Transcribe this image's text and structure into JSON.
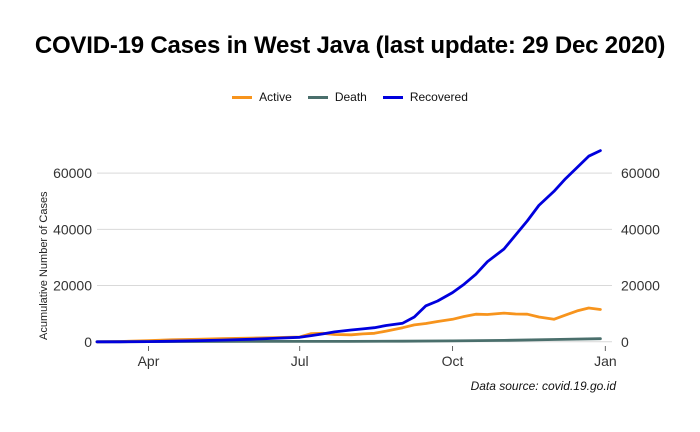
{
  "chart_data": {
    "type": "line",
    "title": "COVID-19 Cases in West Java (last update: 29 Dec 2020)",
    "ylabel": "Acumulative Number of Cases",
    "xlabel": "",
    "source_note": "Data source: covid.19.go.id",
    "x_ticks": [
      "Apr",
      "Jul",
      "Oct",
      "Jan"
    ],
    "x_tick_dates": [
      "2020-04-01",
      "2020-07-01",
      "2020-10-01",
      "2021-01-01"
    ],
    "xlim": [
      "2020-03-01",
      "2021-01-05"
    ],
    "y_ticks": [
      "0",
      "20000",
      "40000",
      "60000"
    ],
    "y_tick_values": [
      0,
      20000,
      40000,
      60000
    ],
    "ylim": [
      -1500,
      70000
    ],
    "grid": true,
    "secondary_y_axis": true,
    "legend": "top-center",
    "series": [
      {
        "name": "Active",
        "color": "#f7941d",
        "x": [
          "2020-03-01",
          "2020-03-15",
          "2020-04-01",
          "2020-04-15",
          "2020-05-01",
          "2020-05-15",
          "2020-06-01",
          "2020-06-15",
          "2020-07-01",
          "2020-07-08",
          "2020-07-15",
          "2020-07-22",
          "2020-08-01",
          "2020-08-08",
          "2020-08-15",
          "2020-08-22",
          "2020-09-01",
          "2020-09-08",
          "2020-09-15",
          "2020-09-22",
          "2020-10-01",
          "2020-10-08",
          "2020-10-15",
          "2020-10-22",
          "2020-11-01",
          "2020-11-08",
          "2020-11-15",
          "2020-11-22",
          "2020-12-01",
          "2020-12-08",
          "2020-12-15",
          "2020-12-22",
          "2020-12-29"
        ],
        "values": [
          0,
          100,
          400,
          700,
          900,
          1100,
          1300,
          1500,
          1700,
          2900,
          3000,
          2600,
          2500,
          2800,
          3000,
          3800,
          5000,
          6000,
          6500,
          7200,
          8000,
          9000,
          9800,
          9700,
          10200,
          9900,
          9800,
          8800,
          8000,
          9500,
          11000,
          12000,
          11500
        ]
      },
      {
        "name": "Death",
        "color": "#4a6f6c",
        "x": [
          "2020-03-01",
          "2020-04-01",
          "2020-05-01",
          "2020-06-01",
          "2020-07-01",
          "2020-08-01",
          "2020-09-01",
          "2020-10-01",
          "2020-11-01",
          "2020-12-01",
          "2020-12-29"
        ],
        "values": [
          0,
          50,
          90,
          120,
          130,
          150,
          190,
          330,
          500,
          800,
          1100
        ]
      },
      {
        "name": "Recovered",
        "color": "#0000dd",
        "x": [
          "2020-03-01",
          "2020-03-15",
          "2020-04-01",
          "2020-04-15",
          "2020-05-01",
          "2020-05-15",
          "2020-06-01",
          "2020-06-15",
          "2020-07-01",
          "2020-07-08",
          "2020-07-15",
          "2020-07-22",
          "2020-08-01",
          "2020-08-08",
          "2020-08-15",
          "2020-08-22",
          "2020-09-01",
          "2020-09-08",
          "2020-09-15",
          "2020-09-22",
          "2020-10-01",
          "2020-10-08",
          "2020-10-15",
          "2020-10-22",
          "2020-11-01",
          "2020-11-08",
          "2020-11-15",
          "2020-11-22",
          "2020-12-01",
          "2020-12-08",
          "2020-12-15",
          "2020-12-22",
          "2020-12-29"
        ],
        "values": [
          0,
          0,
          50,
          200,
          400,
          600,
          900,
          1200,
          1600,
          2200,
          2800,
          3500,
          4200,
          4600,
          5000,
          5800,
          6600,
          8800,
          12800,
          14500,
          17500,
          20500,
          24000,
          28500,
          33000,
          38000,
          43000,
          48500,
          53500,
          58000,
          62000,
          66000,
          68000
        ]
      }
    ]
  }
}
